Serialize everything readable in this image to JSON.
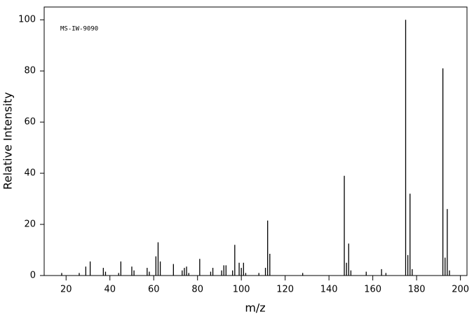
{
  "chart_data": {
    "type": "stick",
    "annotation": "MS-IW-9090",
    "x_label": "m/z",
    "y_label": "Relative Intensity",
    "x": [
      18,
      26,
      29,
      31,
      37,
      38,
      44,
      45,
      50,
      51,
      57,
      58,
      61,
      62,
      63,
      69,
      73,
      74,
      75,
      76,
      81,
      86,
      87,
      91,
      92,
      93,
      96,
      97,
      99,
      100,
      101,
      102,
      108,
      111,
      112,
      113,
      128,
      147,
      148,
      149,
      150,
      157,
      164,
      166,
      175,
      176,
      177,
      178,
      192,
      193,
      194,
      195
    ],
    "values": [
      1,
      1,
      3.5,
      5.5,
      3,
      1.5,
      1,
      5.5,
      3.5,
      2,
      3,
      1.5,
      7.5,
      13,
      5.5,
      4.5,
      2,
      3,
      3.5,
      1,
      6.5,
      1.5,
      3,
      2,
      4,
      4,
      2,
      12,
      5,
      3,
      5,
      1,
      1,
      3,
      21.5,
      8.5,
      1,
      39,
      5,
      12.5,
      2,
      1.5,
      2.5,
      1,
      100,
      8,
      32,
      2.5,
      81,
      7,
      26,
      2
    ],
    "color": "#000000",
    "xlim": [
      10,
      203
    ],
    "ylim": [
      0,
      105
    ],
    "xticks": [
      20,
      40,
      60,
      80,
      100,
      120,
      140,
      160,
      180,
      200
    ],
    "yticks": [
      0,
      20,
      40,
      60,
      80,
      100
    ]
  }
}
